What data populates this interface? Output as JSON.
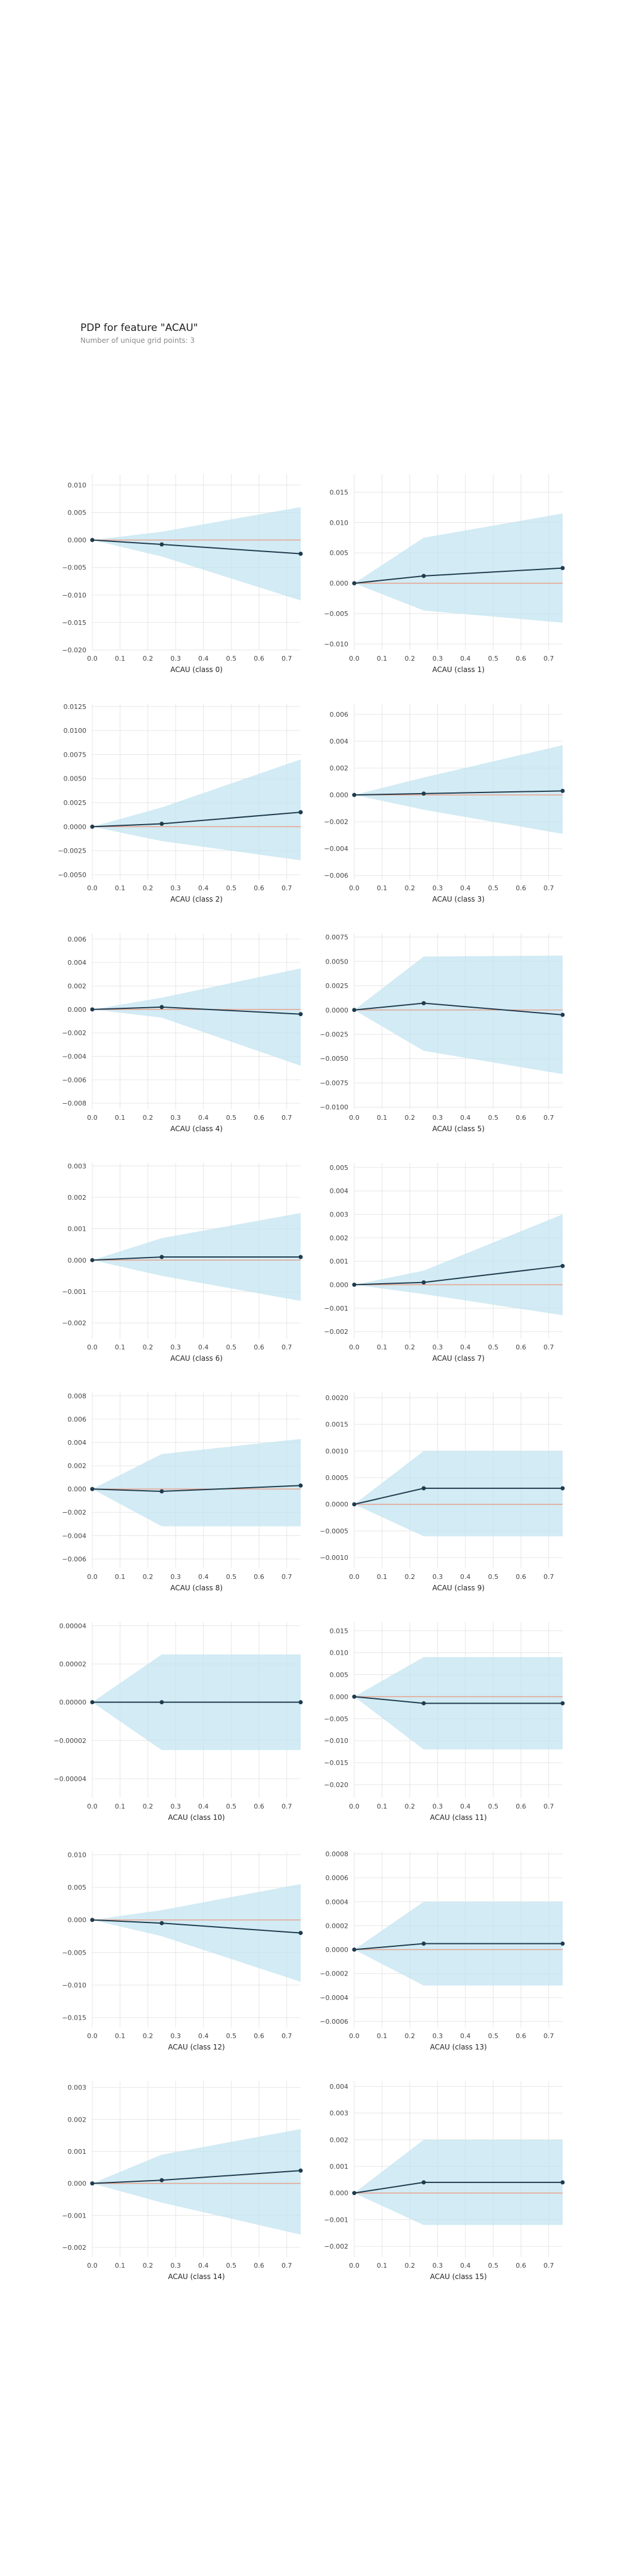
{
  "header": {
    "title": "PDP for feature \"ACAU\"",
    "subtitle": "Number of unique grid points: 3"
  },
  "style": {
    "line_color": "#1f3b4d",
    "band_color": "#bfe2ef",
    "zero_line_color": "#e8a08c",
    "grid_color": "#e6e6e6",
    "tick_color": "#444444"
  },
  "chart_data": [
    {
      "type": "line",
      "xlabel": "ACAU (class 0)",
      "x": [
        0.0,
        0.25,
        0.75
      ],
      "y": [
        0.0,
        -0.0008,
        -0.0025
      ],
      "band_upper": [
        0.0,
        0.0015,
        0.006
      ],
      "band_lower": [
        0.0,
        -0.003,
        -0.011
      ],
      "xlim": [
        0.0,
        0.75
      ],
      "ylim": [
        -0.02,
        0.012
      ],
      "xticks": [
        "0.0",
        "0.1",
        "0.2",
        "0.3",
        "0.4",
        "0.5",
        "0.6",
        "0.7"
      ],
      "yticks": [
        "0.010",
        "0.005",
        "0.000",
        "−0.005",
        "−0.010",
        "−0.015",
        "−0.020"
      ]
    },
    {
      "type": "line",
      "xlabel": "ACAU (class 1)",
      "x": [
        0.0,
        0.25,
        0.75
      ],
      "y": [
        0.0,
        0.0012,
        0.0025
      ],
      "band_upper": [
        0.0,
        0.0075,
        0.0115
      ],
      "band_lower": [
        0.0,
        -0.0045,
        -0.0065
      ],
      "xlim": [
        0.0,
        0.75
      ],
      "ylim": [
        -0.011,
        0.018
      ],
      "xticks": [
        "0.0",
        "0.1",
        "0.2",
        "0.3",
        "0.4",
        "0.5",
        "0.6",
        "0.7"
      ],
      "yticks": [
        "0.015",
        "0.010",
        "0.005",
        "0.000",
        "−0.005",
        "−0.010"
      ]
    },
    {
      "type": "line",
      "xlabel": "ACAU (class 2)",
      "x": [
        0.0,
        0.25,
        0.75
      ],
      "y": [
        0.0,
        0.0003,
        0.0015
      ],
      "band_upper": [
        0.0,
        0.002,
        0.007
      ],
      "band_lower": [
        0.0,
        -0.0015,
        -0.0035
      ],
      "xlim": [
        0.0,
        0.75
      ],
      "ylim": [
        -0.0055,
        0.0128
      ],
      "xticks": [
        "0.0",
        "0.1",
        "0.2",
        "0.3",
        "0.4",
        "0.5",
        "0.6",
        "0.7"
      ],
      "yticks": [
        "0.0125",
        "0.0100",
        "0.0075",
        "0.0050",
        "0.0025",
        "0.0000",
        "−0.0025",
        "−0.0050"
      ]
    },
    {
      "type": "line",
      "xlabel": "ACAU (class 3)",
      "x": [
        0.0,
        0.25,
        0.75
      ],
      "y": [
        0.0,
        0.0001,
        0.0003
      ],
      "band_upper": [
        0.0,
        0.0013,
        0.0037
      ],
      "band_lower": [
        0.0,
        -0.0011,
        -0.0029
      ],
      "xlim": [
        0.0,
        0.75
      ],
      "ylim": [
        -0.0063,
        0.0068
      ],
      "xticks": [
        "0.0",
        "0.1",
        "0.2",
        "0.3",
        "0.4",
        "0.5",
        "0.6",
        "0.7"
      ],
      "yticks": [
        "0.006",
        "0.004",
        "0.002",
        "0.000",
        "−0.002",
        "−0.004",
        "−0.006"
      ]
    },
    {
      "type": "line",
      "xlabel": "ACAU (class 4)",
      "x": [
        0.0,
        0.25,
        0.75
      ],
      "y": [
        0.0,
        0.0002,
        -0.0004
      ],
      "band_upper": [
        0.0,
        0.001,
        0.0035
      ],
      "band_lower": [
        0.0,
        -0.0007,
        -0.0048
      ],
      "xlim": [
        0.0,
        0.75
      ],
      "ylim": [
        -0.0085,
        0.0065
      ],
      "xticks": [
        "0.0",
        "0.1",
        "0.2",
        "0.3",
        "0.4",
        "0.5",
        "0.6",
        "0.7"
      ],
      "yticks": [
        "0.006",
        "0.004",
        "0.002",
        "0.000",
        "−0.002",
        "−0.004",
        "−0.006",
        "−0.008"
      ]
    },
    {
      "type": "line",
      "xlabel": "ACAU (class 5)",
      "x": [
        0.0,
        0.25,
        0.75
      ],
      "y": [
        0.0,
        0.0007,
        -0.0005
      ],
      "band_upper": [
        0.0,
        0.0055,
        0.0056
      ],
      "band_lower": [
        0.0,
        -0.0042,
        -0.0066
      ],
      "xlim": [
        0.0,
        0.75
      ],
      "ylim": [
        -0.0102,
        0.0079
      ],
      "xticks": [
        "0.0",
        "0.1",
        "0.2",
        "0.3",
        "0.4",
        "0.5",
        "0.6",
        "0.7"
      ],
      "yticks": [
        "0.0075",
        "0.0050",
        "0.0025",
        "0.0000",
        "−0.0025",
        "−0.0050",
        "−0.0075",
        "−0.0100"
      ]
    },
    {
      "type": "line",
      "xlabel": "ACAU (class 6)",
      "x": [
        0.0,
        0.25,
        0.75
      ],
      "y": [
        0.0,
        0.0001,
        0.0001
      ],
      "band_upper": [
        0.0,
        0.0007,
        0.0015
      ],
      "band_lower": [
        0.0,
        -0.0005,
        -0.0013
      ],
      "xlim": [
        0.0,
        0.75
      ],
      "ylim": [
        -0.0025,
        0.0031
      ],
      "xticks": [
        "0.0",
        "0.1",
        "0.2",
        "0.3",
        "0.4",
        "0.5",
        "0.6",
        "0.7"
      ],
      "yticks": [
        "0.003",
        "0.002",
        "0.001",
        "0.000",
        "−0.001",
        "−0.002"
      ]
    },
    {
      "type": "line",
      "xlabel": "ACAU (class 7)",
      "x": [
        0.0,
        0.25,
        0.75
      ],
      "y": [
        0.0,
        0.0001,
        0.0008
      ],
      "band_upper": [
        0.0,
        0.0006,
        0.003
      ],
      "band_lower": [
        0.0,
        -0.0004,
        -0.0013
      ],
      "xlim": [
        0.0,
        0.75
      ],
      "ylim": [
        -0.0023,
        0.0052
      ],
      "xticks": [
        "0.0",
        "0.1",
        "0.2",
        "0.3",
        "0.4",
        "0.5",
        "0.6",
        "0.7"
      ],
      "yticks": [
        "0.005",
        "0.004",
        "0.003",
        "0.002",
        "0.001",
        "0.000",
        "−0.001",
        "−0.002"
      ]
    },
    {
      "type": "line",
      "xlabel": "ACAU (class 8)",
      "x": [
        0.0,
        0.25,
        0.75
      ],
      "y": [
        0.0,
        -0.0002,
        0.0003
      ],
      "band_upper": [
        0.0,
        0.003,
        0.0043
      ],
      "band_lower": [
        0.0,
        -0.0032,
        -0.0032
      ],
      "xlim": [
        0.0,
        0.75
      ],
      "ylim": [
        -0.0068,
        0.0083
      ],
      "xticks": [
        "0.0",
        "0.1",
        "0.2",
        "0.3",
        "0.4",
        "0.5",
        "0.6",
        "0.7"
      ],
      "yticks": [
        "0.008",
        "0.006",
        "0.004",
        "0.002",
        "0.000",
        "−0.002",
        "−0.004",
        "−0.006"
      ]
    },
    {
      "type": "line",
      "xlabel": "ACAU (class 9)",
      "x": [
        0.0,
        0.25,
        0.75
      ],
      "y": [
        0.0,
        0.0003,
        0.0003
      ],
      "band_upper": [
        0.0,
        0.001,
        0.001
      ],
      "band_lower": [
        0.0,
        -0.0006,
        -0.0006
      ],
      "xlim": [
        0.0,
        0.75
      ],
      "ylim": [
        -0.0012,
        0.0021
      ],
      "xticks": [
        "0.0",
        "0.1",
        "0.2",
        "0.3",
        "0.4",
        "0.5",
        "0.6",
        "0.7"
      ],
      "yticks": [
        "0.0020",
        "0.0015",
        "0.0010",
        "0.0005",
        "0.0000",
        "−0.0005",
        "−0.0010"
      ]
    },
    {
      "type": "line",
      "xlabel": "ACAU (class 10)",
      "x": [
        0.0,
        0.25,
        0.75
      ],
      "y": [
        0.0,
        0.0,
        0.0
      ],
      "band_upper": [
        0.0,
        2.5e-05,
        2.5e-05
      ],
      "band_lower": [
        0.0,
        -2.5e-05,
        -2.5e-05
      ],
      "xlim": [
        0.0,
        0.75
      ],
      "ylim": [
        -5e-05,
        4.2e-05
      ],
      "xticks": [
        "0.0",
        "0.1",
        "0.2",
        "0.3",
        "0.4",
        "0.5",
        "0.6",
        "0.7"
      ],
      "yticks": [
        "0.00004",
        "0.00002",
        "0.00000",
        "−0.00002",
        "−0.00004"
      ]
    },
    {
      "type": "line",
      "xlabel": "ACAU (class 11)",
      "x": [
        0.0,
        0.25,
        0.75
      ],
      "y": [
        0.0,
        -0.0015,
        -0.0015
      ],
      "band_upper": [
        0.0,
        0.009,
        0.009
      ],
      "band_lower": [
        0.0,
        -0.012,
        -0.012
      ],
      "xlim": [
        0.0,
        0.75
      ],
      "ylim": [
        -0.023,
        0.017
      ],
      "xticks": [
        "0.0",
        "0.1",
        "0.2",
        "0.3",
        "0.4",
        "0.5",
        "0.6",
        "0.7"
      ],
      "yticks": [
        "0.015",
        "0.010",
        "0.005",
        "0.000",
        "−0.005",
        "−0.010",
        "−0.015",
        "−0.020"
      ]
    },
    {
      "type": "line",
      "xlabel": "ACAU (class 12)",
      "x": [
        0.0,
        0.25,
        0.75
      ],
      "y": [
        0.0,
        -0.0005,
        -0.002
      ],
      "band_upper": [
        0.0,
        0.0015,
        0.0055
      ],
      "band_lower": [
        0.0,
        -0.0025,
        -0.0095
      ],
      "xlim": [
        0.0,
        0.75
      ],
      "ylim": [
        -0.0165,
        0.0105
      ],
      "xticks": [
        "0.0",
        "0.1",
        "0.2",
        "0.3",
        "0.4",
        "0.5",
        "0.6",
        "0.7"
      ],
      "yticks": [
        "0.010",
        "0.005",
        "0.000",
        "−0.005",
        "−0.010",
        "−0.015"
      ]
    },
    {
      "type": "line",
      "xlabel": "ACAU (class 13)",
      "x": [
        0.0,
        0.25,
        0.75
      ],
      "y": [
        0.0,
        5e-05,
        5e-05
      ],
      "band_upper": [
        0.0,
        0.0004,
        0.0004
      ],
      "band_lower": [
        0.0,
        -0.0003,
        -0.0003
      ],
      "xlim": [
        0.0,
        0.75
      ],
      "ylim": [
        -0.00065,
        0.00082
      ],
      "xticks": [
        "0.0",
        "0.1",
        "0.2",
        "0.3",
        "0.4",
        "0.5",
        "0.6",
        "0.7"
      ],
      "yticks": [
        "0.0008",
        "0.0006",
        "0.0004",
        "0.0002",
        "0.0000",
        "−0.0002",
        "−0.0004",
        "−0.0006"
      ]
    },
    {
      "type": "line",
      "xlabel": "ACAU (class 14)",
      "x": [
        0.0,
        0.25,
        0.75
      ],
      "y": [
        0.0,
        0.0001,
        0.0004
      ],
      "band_upper": [
        0.0,
        0.0009,
        0.0017
      ],
      "band_lower": [
        0.0,
        -0.0006,
        -0.0016
      ],
      "xlim": [
        0.0,
        0.75
      ],
      "ylim": [
        -0.0023,
        0.0032
      ],
      "xticks": [
        "0.0",
        "0.1",
        "0.2",
        "0.3",
        "0.4",
        "0.5",
        "0.6",
        "0.7"
      ],
      "yticks": [
        "0.003",
        "0.002",
        "0.001",
        "0.000",
        "−0.001",
        "−0.002"
      ]
    },
    {
      "type": "line",
      "xlabel": "ACAU (class 15)",
      "x": [
        0.0,
        0.25,
        0.75
      ],
      "y": [
        0.0,
        0.0004,
        0.0004
      ],
      "band_upper": [
        0.0,
        0.002,
        0.002
      ],
      "band_lower": [
        0.0,
        -0.0012,
        -0.0012
      ],
      "xlim": [
        0.0,
        0.75
      ],
      "ylim": [
        -0.0024,
        0.0042
      ],
      "xticks": [
        "0.0",
        "0.1",
        "0.2",
        "0.3",
        "0.4",
        "0.5",
        "0.6",
        "0.7"
      ],
      "yticks": [
        "0.004",
        "0.003",
        "0.002",
        "0.001",
        "0.000",
        "−0.001",
        "−0.002"
      ]
    }
  ]
}
